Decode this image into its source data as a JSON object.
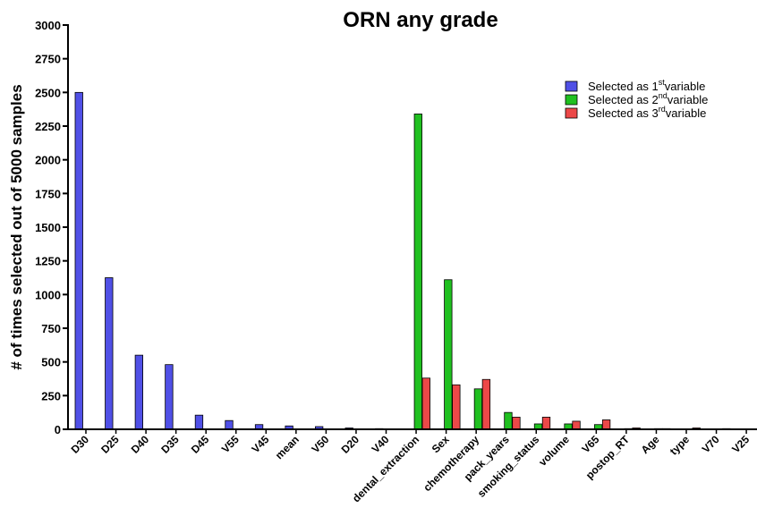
{
  "chart_data": {
    "type": "bar",
    "title": "ORN any grade",
    "ylabel": "# of times selected out of 5000 samples",
    "categories": [
      "D30",
      "D25",
      "D40",
      "D35",
      "D45",
      "V55",
      "V45",
      "mean",
      "V50",
      "D20",
      "V40",
      "dental_extraction",
      "Sex",
      "chemotherapy",
      "pack_years",
      "smoking_status",
      "volume",
      "V65",
      "postop_RT",
      "Age",
      "type",
      "V70",
      "V25"
    ],
    "series": [
      {
        "name": [
          "Selected as 1",
          "st",
          "variable"
        ],
        "color": "#5050e6",
        "values": [
          2500,
          1125,
          550,
          480,
          105,
          65,
          35,
          25,
          20,
          10,
          5,
          0,
          0,
          0,
          0,
          0,
          0,
          0,
          0,
          0,
          0,
          0,
          0
        ]
      },
      {
        "name": [
          "Selected as 2",
          "nd",
          "variable"
        ],
        "color": "#20c020",
        "values": [
          0,
          0,
          0,
          0,
          0,
          0,
          0,
          0,
          0,
          0,
          0,
          2340,
          1110,
          300,
          125,
          40,
          40,
          35,
          5,
          5,
          0,
          0,
          0
        ]
      },
      {
        "name": [
          "Selected as 3",
          "rd",
          "variable"
        ],
        "color": "#ec4848",
        "values": [
          0,
          0,
          0,
          0,
          0,
          0,
          0,
          0,
          0,
          0,
          0,
          380,
          330,
          370,
          90,
          90,
          60,
          70,
          10,
          5,
          10,
          5,
          3
        ]
      }
    ],
    "ylim": [
      0,
      3000
    ],
    "yticks": [
      0,
      250,
      500,
      750,
      1000,
      1250,
      1500,
      1750,
      2000,
      2250,
      2500,
      2750,
      3000
    ],
    "legend": "upper right"
  }
}
